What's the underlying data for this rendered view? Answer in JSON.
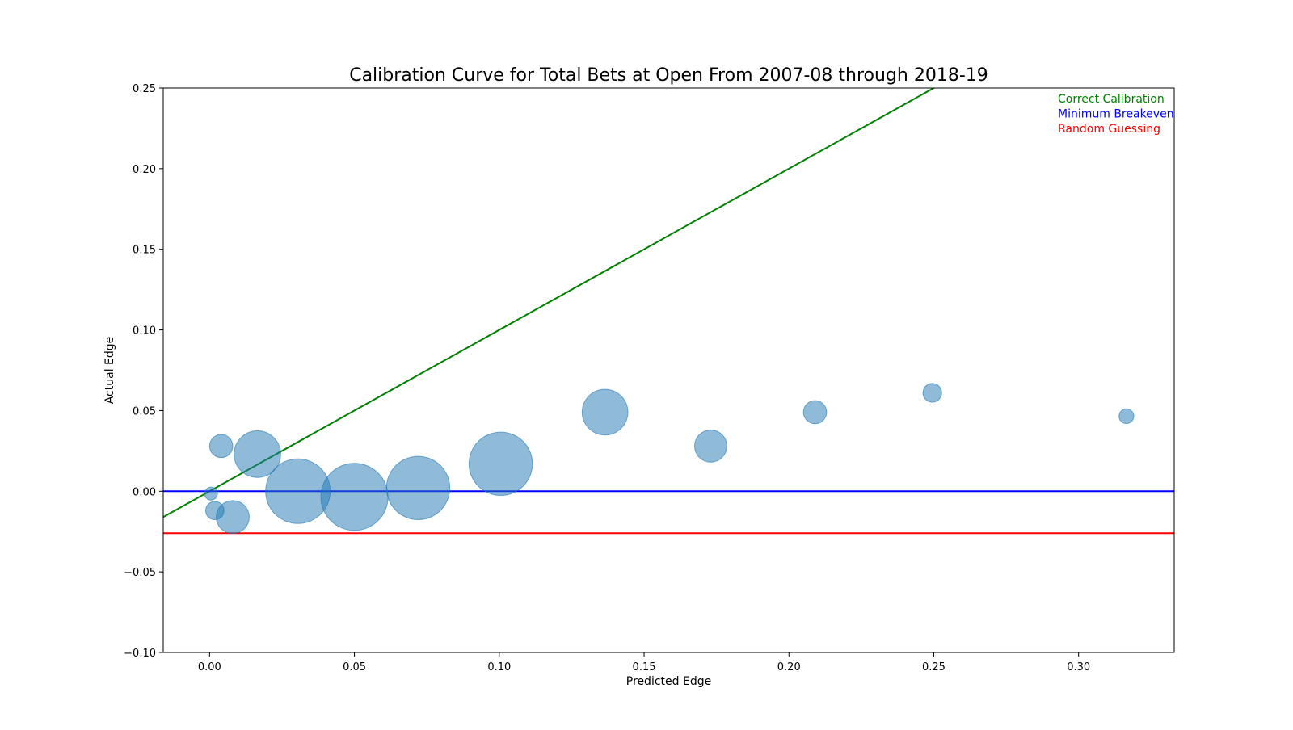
{
  "chart_data": {
    "type": "scatter",
    "title": "Calibration Curve for Total Bets at Open From 2007-08 through 2018-19",
    "xlabel": "Predicted Edge",
    "ylabel": "Actual Edge",
    "xlim": [
      -0.016,
      0.333
    ],
    "ylim": [
      -0.1,
      0.25
    ],
    "x_ticks": [
      0.0,
      0.05,
      0.1,
      0.15,
      0.2,
      0.25,
      0.3
    ],
    "y_ticks": [
      -0.1,
      -0.05,
      0.0,
      0.05,
      0.1,
      0.15,
      0.2,
      0.25
    ],
    "x_tick_labels": [
      "0.00",
      "0.05",
      "0.10",
      "0.15",
      "0.20",
      "0.25",
      "0.30"
    ],
    "y_tick_labels": [
      "−0.10",
      "−0.05",
      "0.00",
      "0.05",
      "0.10",
      "0.15",
      "0.20",
      "0.25"
    ],
    "grid": false,
    "legend_placement": "top-right",
    "point_color": "#1f77b4",
    "point_alpha": 0.5,
    "points": [
      {
        "x": 0.0005,
        "y": -0.0015,
        "size": 1
      },
      {
        "x": 0.0018,
        "y": -0.012,
        "size": 2
      },
      {
        "x": 0.004,
        "y": 0.028,
        "size": 3.2
      },
      {
        "x": 0.008,
        "y": -0.016,
        "size": 6.5
      },
      {
        "x": 0.0165,
        "y": 0.023,
        "size": 13
      },
      {
        "x": 0.0305,
        "y": 0.0,
        "size": 25
      },
      {
        "x": 0.05,
        "y": -0.0035,
        "size": 27
      },
      {
        "x": 0.072,
        "y": 0.002,
        "size": 24
      },
      {
        "x": 0.1005,
        "y": 0.017,
        "size": 24
      },
      {
        "x": 0.1365,
        "y": 0.049,
        "size": 12.5
      },
      {
        "x": 0.173,
        "y": 0.028,
        "size": 6.2
      },
      {
        "x": 0.209,
        "y": 0.049,
        "size": 3.2
      },
      {
        "x": 0.2495,
        "y": 0.061,
        "size": 2.1
      },
      {
        "x": 0.3165,
        "y": 0.0465,
        "size": 1.3
      }
    ],
    "lines": [
      {
        "name": "Correct Calibration",
        "kind": "diagonal",
        "slope": 1,
        "intercept": 0,
        "color": "#008000"
      },
      {
        "name": "Minimum Breakeven",
        "kind": "horizontal",
        "y": 0.0,
        "color": "#0000ff"
      },
      {
        "name": "Random Guessing",
        "kind": "horizontal",
        "y": -0.026,
        "color": "#ff0000"
      }
    ]
  }
}
